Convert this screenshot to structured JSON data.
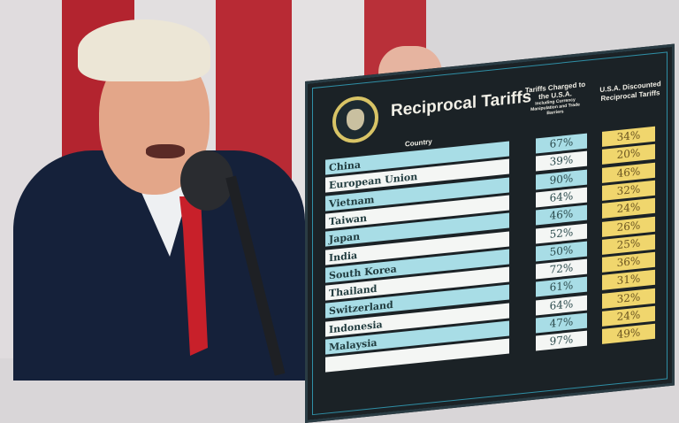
{
  "scene": {
    "flag_red": "#b3242f",
    "flag_white": "#e2dfe0",
    "suit": "#15213a",
    "tie": "#c8202a",
    "board_bg": "#1b2226"
  },
  "board": {
    "title": "Reciprocal Tariffs",
    "seal_icon": "presidential-seal",
    "country_header": "Country",
    "charged_header": "Tariffs Charged to the U.S.A.",
    "charged_subheader": "Including Currency Manipulation and Trade Barriers",
    "discounted_header": "U.S.A. Discounted Reciprocal Tariffs",
    "rows": [
      {
        "country": "China",
        "charged": "67%",
        "discounted": "34%"
      },
      {
        "country": "European Union",
        "charged": "39%",
        "discounted": "20%"
      },
      {
        "country": "Vietnam",
        "charged": "90%",
        "discounted": "46%"
      },
      {
        "country": "Taiwan",
        "charged": "64%",
        "discounted": "32%"
      },
      {
        "country": "Japan",
        "charged": "46%",
        "discounted": "24%"
      },
      {
        "country": "India",
        "charged": "52%",
        "discounted": "26%"
      },
      {
        "country": "South Korea",
        "charged": "50%",
        "discounted": "25%"
      },
      {
        "country": "Thailand",
        "charged": "72%",
        "discounted": "36%"
      },
      {
        "country": "Switzerland",
        "charged": "61%",
        "discounted": "31%"
      },
      {
        "country": "Indonesia",
        "charged": "64%",
        "discounted": "32%"
      },
      {
        "country": "Malaysia",
        "charged": "47%",
        "discounted": "24%"
      },
      {
        "country": "",
        "charged": "97%",
        "discounted": "49%"
      }
    ]
  }
}
